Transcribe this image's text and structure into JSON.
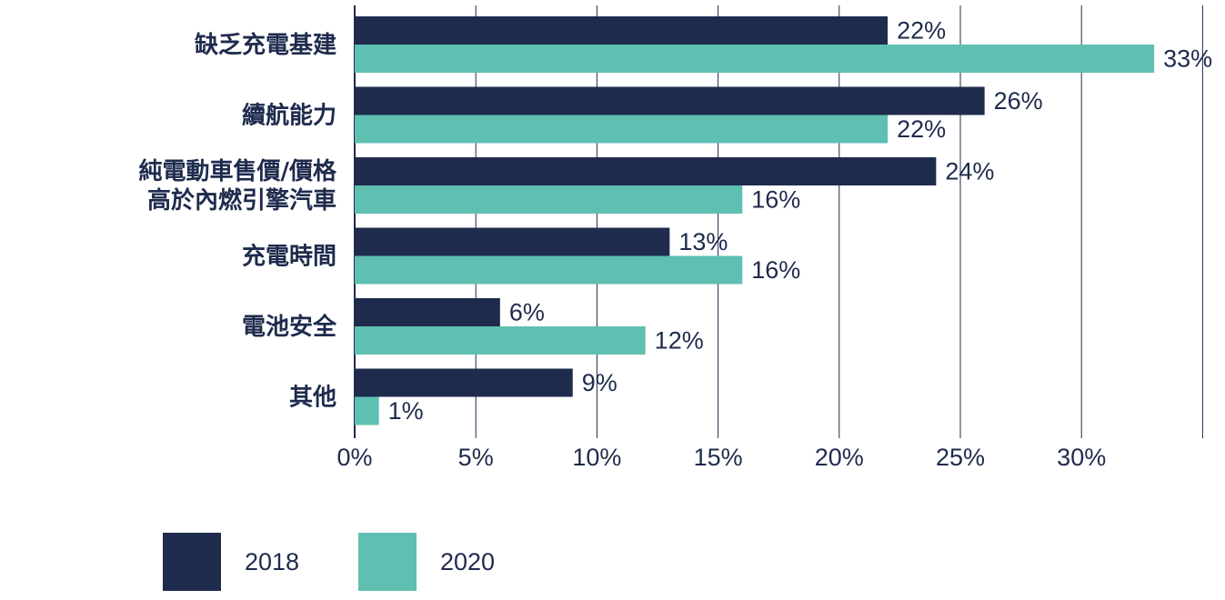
{
  "chart_data": {
    "type": "bar",
    "orientation": "horizontal",
    "categories": [
      [
        "缺乏充電基建"
      ],
      [
        "續航能力"
      ],
      [
        "純電動車售價/價格",
        "高於內燃引擎汽車"
      ],
      [
        "充電時間"
      ],
      [
        "電池安全"
      ],
      [
        "其他"
      ]
    ],
    "series": [
      {
        "name": "2018",
        "values": [
          22,
          26,
          24,
          13,
          6,
          9
        ],
        "color": "#1f2b4d"
      },
      {
        "name": "2020",
        "values": [
          33,
          22,
          16,
          16,
          12,
          1
        ],
        "color": "#5fbfb1"
      }
    ],
    "xticks": [
      0,
      5,
      10,
      15,
      20,
      25,
      30
    ],
    "xlim": [
      0,
      35
    ],
    "value_suffix": "%",
    "grid": true,
    "legend": "bottom-left",
    "text_color": "#1f2b4d",
    "grid_color": "#1f2b4d"
  }
}
